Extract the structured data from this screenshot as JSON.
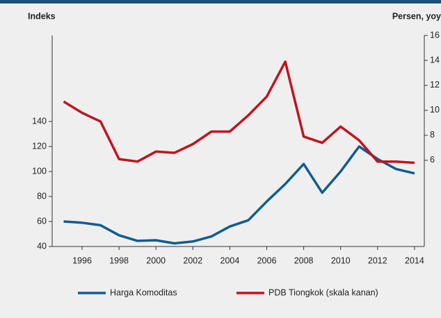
{
  "chart_data": {
    "type": "line",
    "left_axis_label": "Indeks",
    "right_axis_label": "Persen, yoy",
    "x": [
      1995,
      1996,
      1997,
      1998,
      1999,
      2000,
      2001,
      2002,
      2003,
      2004,
      2005,
      2006,
      2007,
      2008,
      2009,
      2010,
      2011,
      2012,
      2013,
      2014
    ],
    "xlim": [
      1994.38,
      2014.53
    ],
    "xticks": [
      1996,
      1998,
      2000,
      2002,
      2004,
      2006,
      2008,
      2010,
      2012,
      2014
    ],
    "ylim": [
      40,
      208.9
    ],
    "yticks": [
      40,
      60,
      80,
      100,
      120,
      140
    ],
    "y2lim": [
      -0.9,
      16
    ],
    "y2ticks": [
      6,
      8,
      10,
      12,
      14,
      16
    ],
    "series": [
      {
        "name": "Harga Komoditas",
        "color": "#0f5d8f",
        "values": [
          60,
          59,
          57,
          49,
          44.5,
          45,
          42.5,
          44,
          48,
          56,
          61,
          76,
          90,
          106,
          83,
          100,
          120,
          110,
          102,
          98.5
        ]
      },
      {
        "name": "PDB Tiongkok (skala kanan)",
        "color": "#c0141e",
        "axis": "y2",
        "values": [
          10.7,
          9.8,
          9.1,
          6.1,
          5.9,
          6.7,
          6.6,
          7.3,
          8.3,
          8.3,
          9.6,
          11.1,
          13.9,
          7.9,
          7.4,
          8.7,
          7.6,
          5.9,
          5.9,
          5.8
        ]
      }
    ]
  }
}
